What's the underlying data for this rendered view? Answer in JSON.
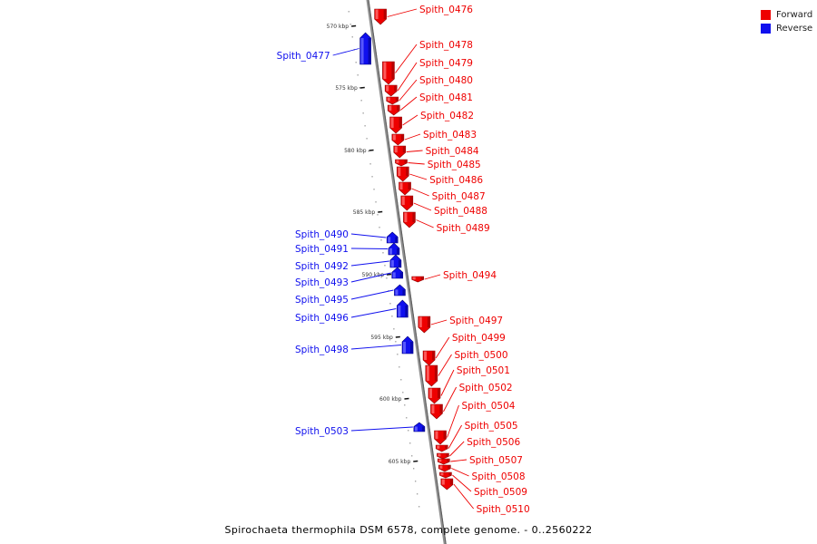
{
  "colors": {
    "forward": "#ee0000",
    "reverse": "#1010ee",
    "axis": "#777777"
  },
  "legend": [
    {
      "label": "Forward",
      "color": "#ee0000"
    },
    {
      "label": "Reverse",
      "color": "#1010ee"
    }
  ],
  "scale_unit": "kbp",
  "ticks_kbp": [
    570,
    575,
    580,
    585,
    590,
    595,
    600,
    605
  ],
  "caption": "Spirochaeta thermophila DSM 6578, complete genome. - 0..2560222",
  "genes": [
    {
      "name": "Spith_0476",
      "strand": "forward"
    },
    {
      "name": "Spith_0477",
      "strand": "reverse"
    },
    {
      "name": "Spith_0478",
      "strand": "forward"
    },
    {
      "name": "Spith_0479",
      "strand": "forward"
    },
    {
      "name": "Spith_0480",
      "strand": "forward"
    },
    {
      "name": "Spith_0481",
      "strand": "forward"
    },
    {
      "name": "Spith_0482",
      "strand": "forward"
    },
    {
      "name": "Spith_0483",
      "strand": "forward"
    },
    {
      "name": "Spith_0484",
      "strand": "forward"
    },
    {
      "name": "Spith_0485",
      "strand": "forward"
    },
    {
      "name": "Spith_0486",
      "strand": "forward"
    },
    {
      "name": "Spith_0487",
      "strand": "forward"
    },
    {
      "name": "Spith_0488",
      "strand": "forward"
    },
    {
      "name": "Spith_0489",
      "strand": "forward"
    },
    {
      "name": "Spith_0490",
      "strand": "reverse"
    },
    {
      "name": "Spith_0491",
      "strand": "reverse"
    },
    {
      "name": "Spith_0492",
      "strand": "reverse"
    },
    {
      "name": "Spith_0493",
      "strand": "reverse"
    },
    {
      "name": "Spith_0494",
      "strand": "forward"
    },
    {
      "name": "Spith_0495",
      "strand": "reverse"
    },
    {
      "name": "Spith_0496",
      "strand": "reverse"
    },
    {
      "name": "Spith_0497",
      "strand": "forward"
    },
    {
      "name": "Spith_0498",
      "strand": "reverse"
    },
    {
      "name": "Spith_0499",
      "strand": "forward"
    },
    {
      "name": "Spith_0500",
      "strand": "forward"
    },
    {
      "name": "Spith_0501",
      "strand": "forward"
    },
    {
      "name": "Spith_0502",
      "strand": "forward"
    },
    {
      "name": "Spith_0503",
      "strand": "reverse"
    },
    {
      "name": "Spith_0504",
      "strand": "forward"
    },
    {
      "name": "Spith_0505",
      "strand": "forward"
    },
    {
      "name": "Spith_0506",
      "strand": "forward"
    },
    {
      "name": "Spith_0507",
      "strand": "forward"
    },
    {
      "name": "Spith_0508",
      "strand": "forward"
    },
    {
      "name": "Spith_0509",
      "strand": "forward"
    },
    {
      "name": "Spith_0510",
      "strand": "forward"
    }
  ]
}
